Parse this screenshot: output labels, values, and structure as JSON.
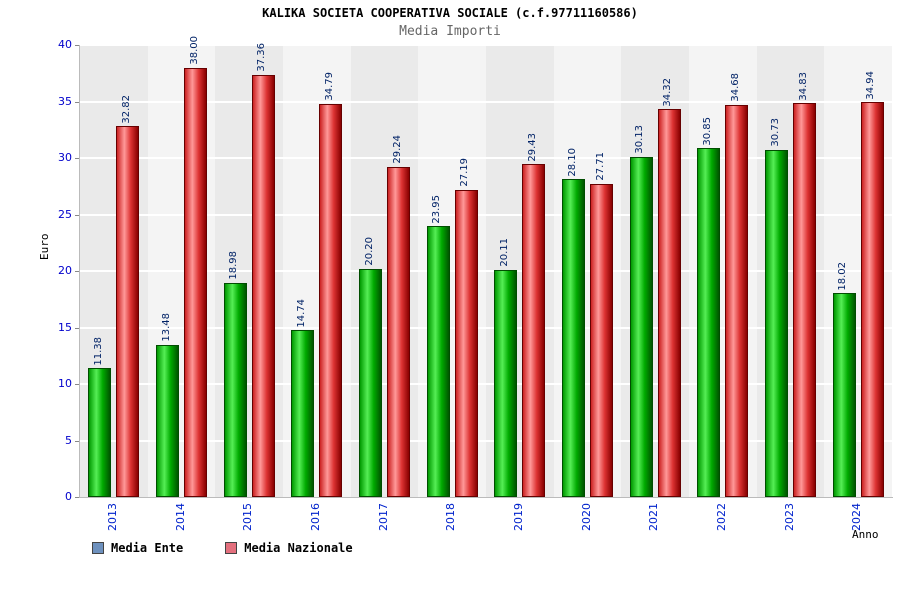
{
  "chart_data": {
    "type": "bar",
    "title": "KALIKA SOCIETA COOPERATIVA SOCIALE (c.f.97711160586)",
    "subtitle": "Media Importi",
    "ylabel": "Euro",
    "xlabel": "Anno",
    "ylim": [
      0,
      40
    ],
    "ytick_step": 5,
    "grid": "horizontal-white",
    "legend_position": "bottom-left",
    "categories": [
      "2013",
      "2014",
      "2015",
      "2016",
      "2017",
      "2018",
      "2019",
      "2020",
      "2021",
      "2022",
      "2023",
      "2024"
    ],
    "series": [
      {
        "name": "Media Ente",
        "bar_color": "#00cc00",
        "legend_color": "#6e91be",
        "values": [
          11.38,
          13.48,
          18.98,
          14.74,
          20.2,
          23.95,
          20.11,
          28.1,
          30.13,
          30.85,
          30.73,
          18.02
        ]
      },
      {
        "name": "Media Nazionale",
        "bar_color": "#ee3333",
        "legend_color": "#e4707e",
        "values": [
          32.82,
          38.0,
          37.36,
          34.79,
          29.24,
          27.19,
          29.43,
          27.71,
          34.32,
          34.68,
          34.83,
          34.94
        ]
      }
    ]
  }
}
